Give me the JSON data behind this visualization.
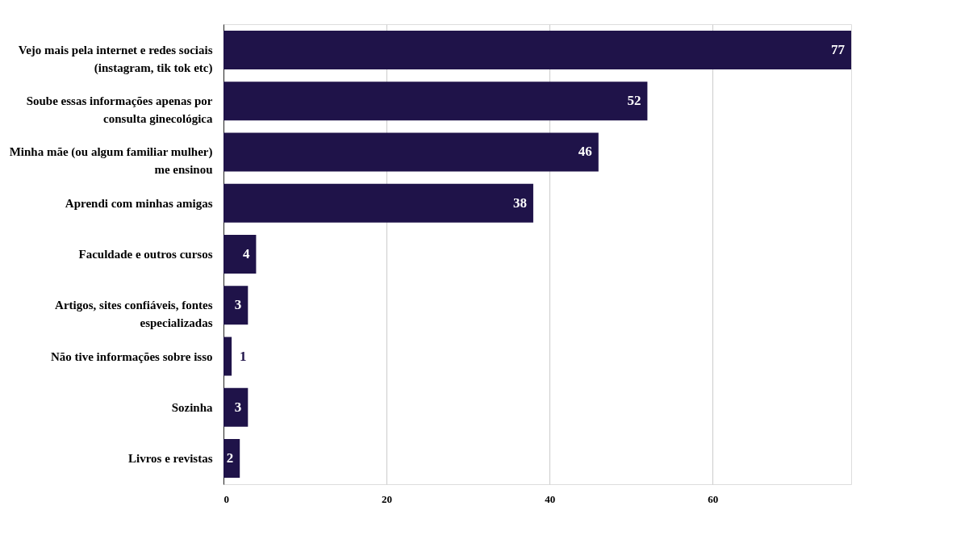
{
  "chart_data": {
    "type": "bar",
    "orientation": "horizontal",
    "categories": [
      "Vejo mais pela internet e redes sociais\n(instagram, tik tok etc)",
      "Soube essas informações apenas por\nconsulta ginecológica",
      "Minha mãe (ou algum familiar mulher)\nme ensinou",
      "Aprendi com minhas amigas",
      "Faculdade e outros cursos",
      "Artigos, sites confiáveis, fontes\nespecializadas",
      "Não tive informações sobre isso",
      "Sozinha",
      "Livros e revistas"
    ],
    "values": [
      77,
      52,
      46,
      38,
      4,
      3,
      1,
      3,
      2
    ],
    "color": "#1f1349",
    "xlim": [
      0,
      77
    ],
    "xticks": [
      0,
      20,
      40,
      60
    ],
    "grid": "x",
    "data_labels": true
  }
}
